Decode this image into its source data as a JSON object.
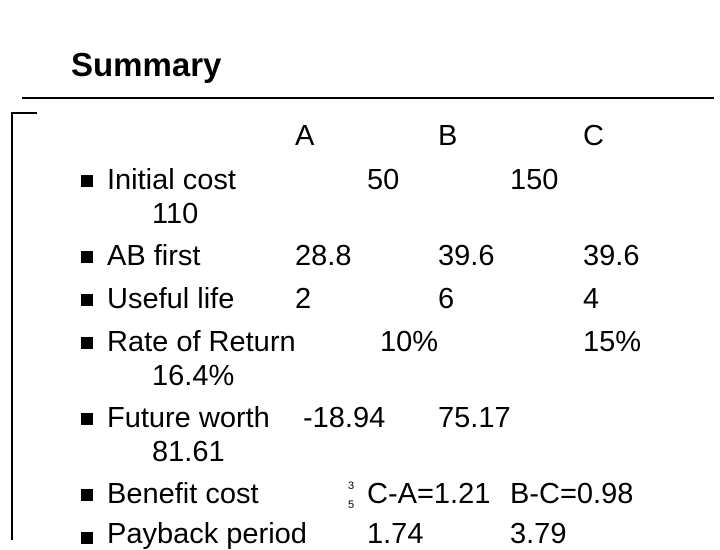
{
  "title": "Summary",
  "headers": {
    "a": "A",
    "b": "B",
    "c": "C"
  },
  "rows": [
    {
      "label": "Initial cost",
      "a": "50",
      "b": "150",
      "c": "110"
    },
    {
      "label": "AB first",
      "a": "28.8",
      "b": "39.6",
      "c": "39.6"
    },
    {
      "label": "Useful life",
      "a": "2",
      "b": "6",
      "c": "4"
    },
    {
      "label": "Rate of Return",
      "a": "10%",
      "b": "15%",
      "c": "16.4%"
    },
    {
      "label": "Future worth",
      "a": "-18.94",
      "b": "75.17",
      "c": "81.61"
    },
    {
      "label": "Benefit cost",
      "note_top": "3",
      "note_bottom": "5",
      "a": "C-A=1.21",
      "b": "B-C=0.98"
    },
    {
      "label": "Payback period",
      "a": "1.74",
      "b": "3.79"
    }
  ],
  "colors": {
    "text": "#000000",
    "background": "#ffffff"
  }
}
